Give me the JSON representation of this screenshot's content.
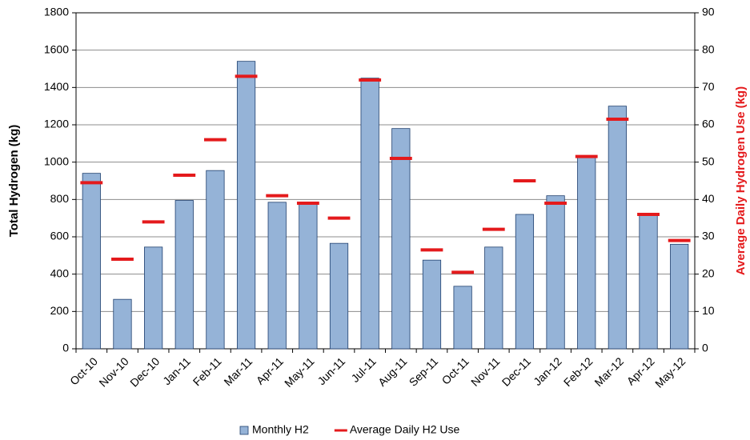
{
  "chart_data": {
    "type": "bar",
    "y_label": "Total Hydrogen (kg)",
    "y2_label": "Average Daily Hydrogen Use (kg)",
    "categories": [
      "Oct-10",
      "Nov-10",
      "Dec-10",
      "Jan-11",
      "Feb-11",
      "Mar-11",
      "Apr-11",
      "May-11",
      "Jun-11",
      "Jul-11",
      "Aug-11",
      "Sep-11",
      "Oct-11",
      "Nov-11",
      "Dec-11",
      "Jan-12",
      "Feb-12",
      "Mar-12",
      "Apr-12",
      "May-12"
    ],
    "series": [
      {
        "name": "Monthly H2",
        "color": "#95b3d7",
        "style": "bar",
        "values": [
          940,
          265,
          545,
          795,
          955,
          1540,
          785,
          780,
          565,
          1450,
          1180,
          475,
          335,
          545,
          720,
          820,
          1035,
          1300,
          720,
          560
        ]
      },
      {
        "name": "Average Daily H2 Use",
        "color": "#e41a1c",
        "style": "dash",
        "axis": "y2",
        "values": [
          44.5,
          24,
          34,
          46.5,
          56,
          73,
          41,
          39,
          35,
          72,
          51,
          26.5,
          20.5,
          32,
          45,
          39,
          51.5,
          61.5,
          36,
          29
        ]
      }
    ],
    "ylim": [
      0,
      1800
    ],
    "yticks": [
      0,
      200,
      400,
      600,
      800,
      1000,
      1200,
      1400,
      1600,
      1800
    ],
    "y2lim": [
      0,
      90
    ],
    "y2ticks": [
      0,
      10,
      20,
      30,
      40,
      50,
      60,
      70,
      80,
      90
    ],
    "grid": true,
    "legend": "bottom"
  }
}
